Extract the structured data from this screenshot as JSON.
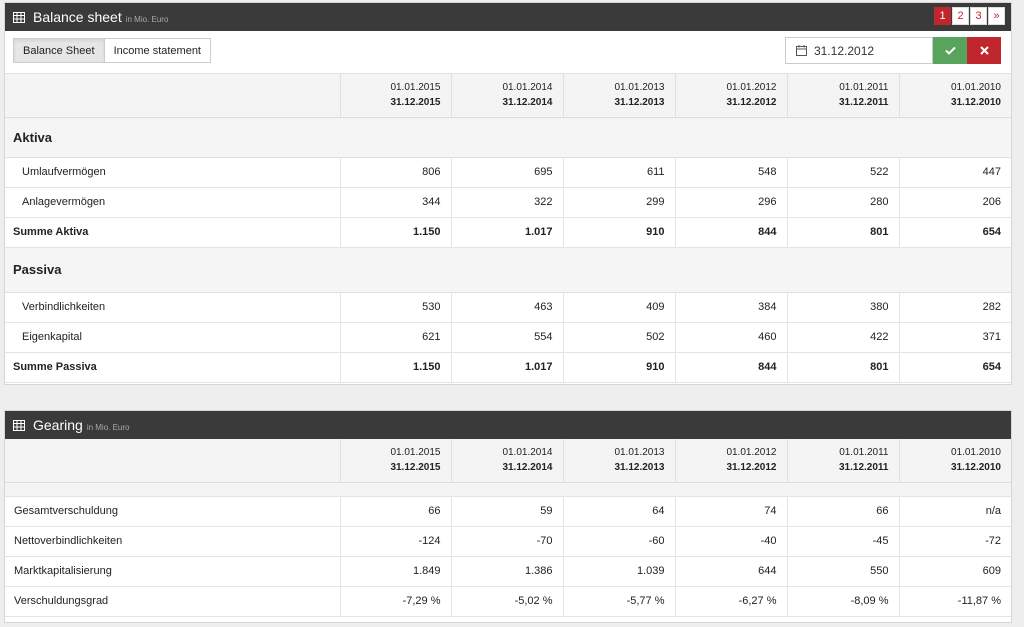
{
  "balance": {
    "title": "Balance sheet",
    "subtitle": "in Mio. Euro",
    "pages": [
      "1",
      "2",
      "3",
      "»"
    ],
    "tabs": [
      "Balance Sheet",
      "Income statement"
    ],
    "date": "31.12.2012",
    "periods": [
      {
        "from": "01.01.2015",
        "to": "31.12.2015"
      },
      {
        "from": "01.01.2014",
        "to": "31.12.2014"
      },
      {
        "from": "01.01.2013",
        "to": "31.12.2013"
      },
      {
        "from": "01.01.2012",
        "to": "31.12.2012"
      },
      {
        "from": "01.01.2011",
        "to": "31.12.2011"
      },
      {
        "from": "01.01.2010",
        "to": "31.12.2010"
      }
    ],
    "aktiva_heading": "Aktiva",
    "aktiva_rows": [
      {
        "label": "Umlaufvermögen",
        "values": [
          "806",
          "695",
          "611",
          "548",
          "522",
          "447"
        ]
      },
      {
        "label": "Anlagevermögen",
        "values": [
          "344",
          "322",
          "299",
          "296",
          "280",
          "206"
        ]
      }
    ],
    "aktiva_sum": {
      "label": "Summe Aktiva",
      "values": [
        "1.150",
        "1.017",
        "910",
        "844",
        "801",
        "654"
      ]
    },
    "passiva_heading": "Passiva",
    "passiva_rows": [
      {
        "label": "Verbindlichkeiten",
        "values": [
          "530",
          "463",
          "409",
          "384",
          "380",
          "282"
        ]
      },
      {
        "label": "Eigenkapital",
        "values": [
          "621",
          "554",
          "502",
          "460",
          "422",
          "371"
        ]
      }
    ],
    "passiva_sum": {
      "label": "Summe Passiva",
      "values": [
        "1.150",
        "1.017",
        "910",
        "844",
        "801",
        "654"
      ]
    }
  },
  "gearing": {
    "title": "Gearing",
    "subtitle": "in Mio. Euro",
    "periods": [
      {
        "from": "01.01.2015",
        "to": "31.12.2015"
      },
      {
        "from": "01.01.2014",
        "to": "31.12.2014"
      },
      {
        "from": "01.01.2013",
        "to": "31.12.2013"
      },
      {
        "from": "01.01.2012",
        "to": "31.12.2012"
      },
      {
        "from": "01.01.2011",
        "to": "31.12.2011"
      },
      {
        "from": "01.01.2010",
        "to": "31.12.2010"
      }
    ],
    "rows": [
      {
        "label": "Gesamtverschuldung",
        "values": [
          "66",
          "59",
          "64",
          "74",
          "66",
          "n/a"
        ]
      },
      {
        "label": "Nettoverbindlichkeiten",
        "values": [
          "-124",
          "-70",
          "-60",
          "-40",
          "-45",
          "-72"
        ]
      },
      {
        "label": "Marktkapitalisierung",
        "values": [
          "1.849",
          "1.386",
          "1.039",
          "644",
          "550",
          "609"
        ]
      },
      {
        "label": "Verschuldungsgrad",
        "values": [
          "-7,29 %",
          "-5,02 %",
          "-5,77 %",
          "-6,27 %",
          "-8,09 %",
          "-11,87 %"
        ]
      }
    ]
  },
  "colors": {
    "header_bg": "#3a3a3a",
    "accent_red": "#c0262e",
    "confirm_green": "#59a45c"
  }
}
